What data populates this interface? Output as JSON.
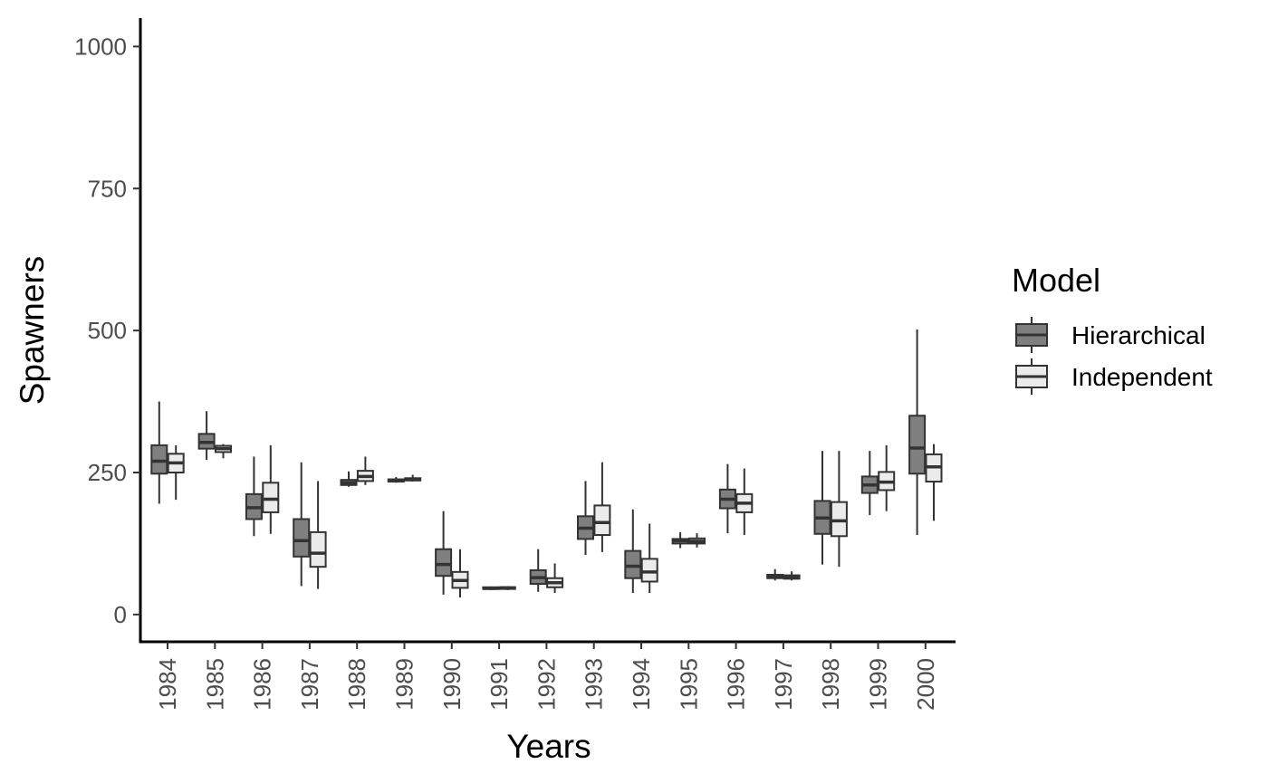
{
  "chart_data": {
    "type": "boxplot",
    "xlabel": "Years",
    "ylabel": "Spawners",
    "ylim": [
      -48,
      1050
    ],
    "yticks": [
      0,
      250,
      500,
      750,
      1000
    ],
    "grid": false,
    "legend": {
      "title": "Model",
      "placement": "right",
      "entries": [
        "Hierarchical",
        "Independent"
      ]
    },
    "categories": [
      "1984",
      "1985",
      "1986",
      "1987",
      "1988",
      "1989",
      "1990",
      "1991",
      "1992",
      "1993",
      "1994",
      "1995",
      "1996",
      "1997",
      "1998",
      "1999",
      "2000"
    ],
    "series": [
      {
        "name": "Hierarchical",
        "color": "#7f7f7f",
        "boxes": [
          {
            "min": 195,
            "q1": 248,
            "median": 270,
            "q3": 298,
            "max": 375
          },
          {
            "min": 272,
            "q1": 292,
            "median": 303,
            "q3": 318,
            "max": 358
          },
          {
            "min": 138,
            "q1": 168,
            "median": 188,
            "q3": 212,
            "max": 278
          },
          {
            "min": 50,
            "q1": 102,
            "median": 130,
            "q3": 168,
            "max": 268
          },
          {
            "min": 225,
            "q1": 228,
            "median": 232,
            "q3": 237,
            "max": 252
          },
          {
            "min": 232,
            "q1": 234,
            "median": 236,
            "q3": 238,
            "max": 242
          },
          {
            "min": 35,
            "q1": 68,
            "median": 88,
            "q3": 115,
            "max": 182
          },
          {
            "min": 43,
            "q1": 45,
            "median": 46,
            "q3": 48,
            "max": 49
          },
          {
            "min": 40,
            "q1": 54,
            "median": 65,
            "q3": 78,
            "max": 115
          },
          {
            "min": 105,
            "q1": 133,
            "median": 152,
            "q3": 173,
            "max": 235
          },
          {
            "min": 38,
            "q1": 64,
            "median": 85,
            "q3": 112,
            "max": 185
          },
          {
            "min": 117,
            "q1": 125,
            "median": 130,
            "q3": 133,
            "max": 145
          },
          {
            "min": 143,
            "q1": 187,
            "median": 203,
            "q3": 220,
            "max": 265
          },
          {
            "min": 60,
            "q1": 64,
            "median": 67,
            "q3": 70,
            "max": 80
          },
          {
            "min": 88,
            "q1": 142,
            "median": 170,
            "q3": 200,
            "max": 288
          },
          {
            "min": 175,
            "q1": 214,
            "median": 228,
            "q3": 243,
            "max": 288
          },
          {
            "min": 140,
            "q1": 248,
            "median": 293,
            "q3": 350,
            "max": 502
          }
        ]
      },
      {
        "name": "Independent",
        "color": "#ebebeb",
        "boxes": [
          {
            "min": 202,
            "q1": 250,
            "median": 267,
            "q3": 283,
            "max": 298
          },
          {
            "min": 275,
            "q1": 286,
            "median": 292,
            "q3": 297,
            "max": 300
          },
          {
            "min": 142,
            "q1": 180,
            "median": 203,
            "q3": 232,
            "max": 298
          },
          {
            "min": 45,
            "q1": 84,
            "median": 108,
            "q3": 145,
            "max": 235
          },
          {
            "min": 228,
            "q1": 235,
            "median": 243,
            "q3": 253,
            "max": 278
          },
          {
            "min": 234,
            "q1": 236,
            "median": 238,
            "q3": 240,
            "max": 246
          },
          {
            "min": 30,
            "q1": 47,
            "median": 60,
            "q3": 75,
            "max": 115
          },
          {
            "min": 43,
            "q1": 45,
            "median": 47,
            "q3": 48,
            "max": 50
          },
          {
            "min": 38,
            "q1": 48,
            "median": 56,
            "q3": 64,
            "max": 90
          },
          {
            "min": 110,
            "q1": 140,
            "median": 162,
            "q3": 192,
            "max": 268
          },
          {
            "min": 38,
            "q1": 58,
            "median": 75,
            "q3": 98,
            "max": 160
          },
          {
            "min": 118,
            "q1": 125,
            "median": 129,
            "q3": 134,
            "max": 143
          },
          {
            "min": 140,
            "q1": 180,
            "median": 196,
            "q3": 212,
            "max": 257
          },
          {
            "min": 60,
            "q1": 63,
            "median": 66,
            "q3": 69,
            "max": 76
          },
          {
            "min": 84,
            "q1": 138,
            "median": 165,
            "q3": 198,
            "max": 288
          },
          {
            "min": 182,
            "q1": 219,
            "median": 233,
            "q3": 251,
            "max": 298
          },
          {
            "min": 165,
            "q1": 234,
            "median": 260,
            "q3": 282,
            "max": 300
          }
        ]
      }
    ]
  }
}
